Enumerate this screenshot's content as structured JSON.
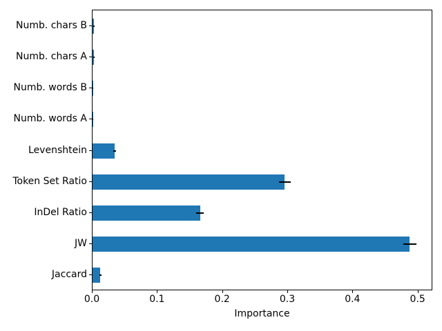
{
  "figure": {
    "background": "#ffffff"
  },
  "chart_data": {
    "type": "bar",
    "orientation": "horizontal",
    "title": "",
    "xlabel": "Importance",
    "ylabel": "",
    "categories": [
      "Numb. chars B",
      "Numb. chars A",
      "Numb. words B",
      "Numb. words A",
      "Levenshtein",
      "Token Set Ratio",
      "InDel Ratio",
      "JW",
      "Jaccard"
    ],
    "values": [
      0.002,
      0.002,
      0.0004,
      0.0004,
      0.034,
      0.295,
      0.165,
      0.487,
      0.012
    ],
    "errors": [
      0.001,
      0.001,
      0.0002,
      0.0002,
      0.002,
      0.009,
      0.006,
      0.01,
      0.0015
    ],
    "xlim": [
      0,
      0.5226
    ],
    "xticks": [
      0.0,
      0.1,
      0.2,
      0.3,
      0.4,
      0.5
    ],
    "xtick_labels": [
      "0.0",
      "0.1",
      "0.2",
      "0.3",
      "0.4",
      "0.5"
    ],
    "bar_color": "#1f77b4",
    "error_color": "#000000",
    "grid": false,
    "legend": false
  }
}
